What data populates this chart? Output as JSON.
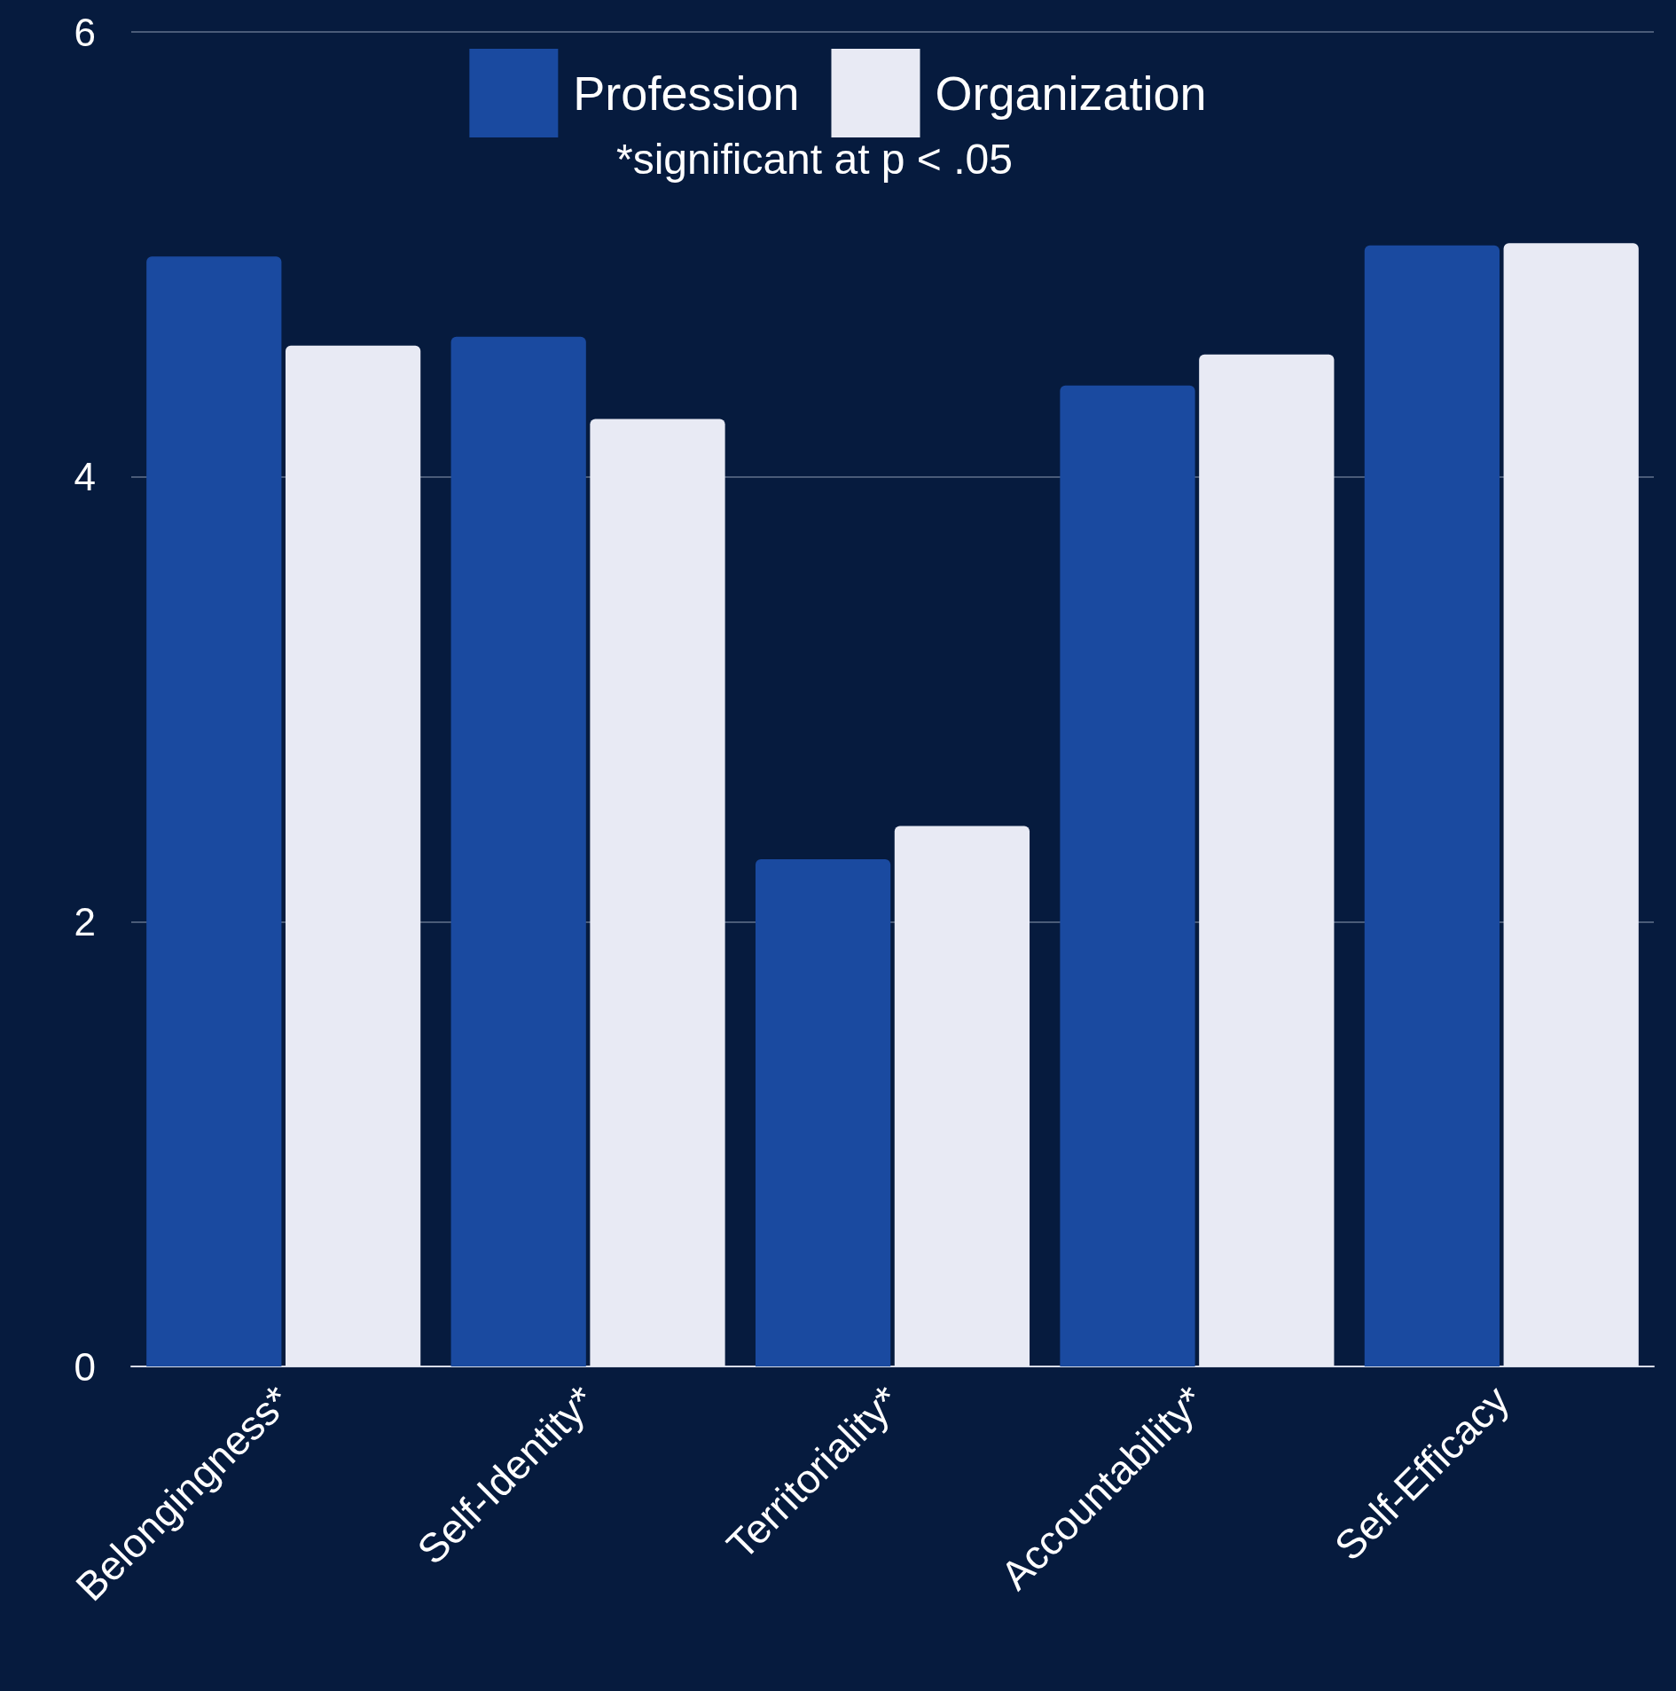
{
  "chart_data": {
    "type": "bar",
    "categories": [
      "Belongingness*",
      "Self-Identity*",
      "Territoriality*",
      "Accountability*",
      "Self-Efficacy"
    ],
    "series": [
      {
        "name": "Profession",
        "color": "#1a4aa0",
        "values": [
          4.99,
          4.63,
          2.28,
          4.41,
          5.04
        ]
      },
      {
        "name": "Organization",
        "color": "#e8eaf4",
        "values": [
          4.59,
          4.26,
          2.43,
          4.55,
          5.05
        ]
      }
    ],
    "ylim": [
      0,
      6
    ],
    "yticks": [
      0,
      2,
      4,
      6
    ],
    "grid": "y",
    "legend": "top",
    "annotations": [
      "*significant at p < .05"
    ]
  }
}
